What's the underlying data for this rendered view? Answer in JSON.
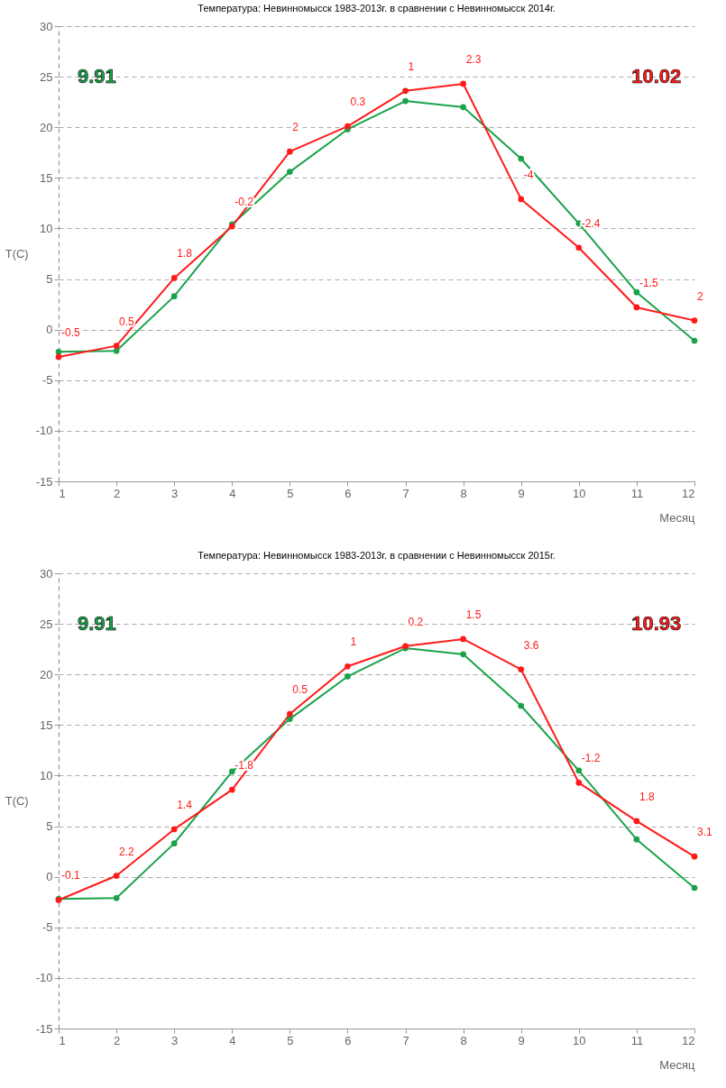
{
  "chart_data": [
    {
      "type": "line",
      "title": "Температура: Невинномысск 1983-2013г. в сравнении с Невинномысск 2014г.",
      "xlabel": "Месяц",
      "ylabel": "T(C)",
      "x": [
        1,
        2,
        3,
        4,
        5,
        6,
        7,
        8,
        9,
        10,
        11,
        12
      ],
      "xlim": [
        1,
        12
      ],
      "xticks": [
        1,
        2,
        3,
        4,
        5,
        6,
        7,
        8,
        9,
        10,
        11,
        12
      ],
      "ylim": [
        -15,
        30
      ],
      "yticks": [
        -15,
        -10,
        -5,
        0,
        5,
        10,
        15,
        20,
        25,
        30
      ],
      "grid": "y",
      "marker": "circle",
      "series": [
        {
          "color": "#1aa24a",
          "values": [
            -2.2,
            -2.1,
            3.3,
            10.4,
            15.6,
            19.8,
            22.6,
            22.0,
            16.9,
            10.5,
            3.7,
            -1.1
          ]
        },
        {
          "color": "#ff1a1a",
          "values": [
            -2.7,
            -1.6,
            5.1,
            10.2,
            17.6,
            20.1,
            23.6,
            24.3,
            12.9,
            8.1,
            2.2,
            0.9
          ]
        }
      ],
      "annotations": [
        "9.91",
        "10.02",
        {
          "text": "-0.5",
          "x": 1,
          "y": -2.7
        },
        {
          "text": "0.5",
          "x": 2,
          "y": -1.6
        },
        {
          "text": "1.8",
          "x": 3,
          "y": 5.1
        },
        {
          "text": "-0.2",
          "x": 4,
          "y": 10.2
        },
        {
          "text": "2",
          "x": 5,
          "y": 17.6
        },
        {
          "text": "0.3",
          "x": 6,
          "y": 20.1
        },
        {
          "text": "1",
          "x": 7,
          "y": 23.6
        },
        {
          "text": "2.3",
          "x": 8,
          "y": 24.3
        },
        {
          "text": "-4",
          "x": 9,
          "y": 12.9
        },
        {
          "text": "-2.4",
          "x": 10,
          "y": 8.1
        },
        {
          "text": "-1.5",
          "x": 11,
          "y": 2.2
        },
        {
          "text": "2",
          "x": 12,
          "y": 0.9
        }
      ]
    },
    {
      "type": "line",
      "title": "Температура: Невинномысск 1983-2013г. в сравнении с Невинномысск 2015г.",
      "xlabel": "Месяц",
      "ylabel": "T(C)",
      "x": [
        1,
        2,
        3,
        4,
        5,
        6,
        7,
        8,
        9,
        10,
        11,
        12
      ],
      "xlim": [
        1,
        12
      ],
      "xticks": [
        1,
        2,
        3,
        4,
        5,
        6,
        7,
        8,
        9,
        10,
        11,
        12
      ],
      "ylim": [
        -15,
        30
      ],
      "yticks": [
        -15,
        -10,
        -5,
        0,
        5,
        10,
        15,
        20,
        25,
        30
      ],
      "grid": "y",
      "marker": "circle",
      "series": [
        {
          "color": "#1aa24a",
          "values": [
            -2.2,
            -2.1,
            3.3,
            10.4,
            15.6,
            19.8,
            22.6,
            22.0,
            16.9,
            10.5,
            3.7,
            -1.1
          ]
        },
        {
          "color": "#ff1a1a",
          "values": [
            -2.3,
            0.1,
            4.7,
            8.6,
            16.1,
            20.8,
            22.8,
            23.5,
            20.5,
            9.3,
            5.5,
            2.0
          ]
        }
      ],
      "annotations": [
        "9.91",
        "10.93",
        {
          "text": "-0.1",
          "x": 1,
          "y": -2.3
        },
        {
          "text": "2.2",
          "x": 2,
          "y": 0.1
        },
        {
          "text": "1.4",
          "x": 3,
          "y": 4.7
        },
        {
          "text": "-1.8",
          "x": 4,
          "y": 8.6
        },
        {
          "text": "0.5",
          "x": 5,
          "y": 16.1
        },
        {
          "text": "1",
          "x": 6,
          "y": 20.8
        },
        {
          "text": "0.2",
          "x": 7,
          "y": 22.8
        },
        {
          "text": "1.5",
          "x": 8,
          "y": 23.5
        },
        {
          "text": "3.6",
          "x": 9,
          "y": 20.5
        },
        {
          "text": "-1.2",
          "x": 10,
          "y": 9.3
        },
        {
          "text": "1.8",
          "x": 11,
          "y": 5.5
        },
        {
          "text": "3.1",
          "x": 12,
          "y": 2.0
        }
      ]
    }
  ]
}
